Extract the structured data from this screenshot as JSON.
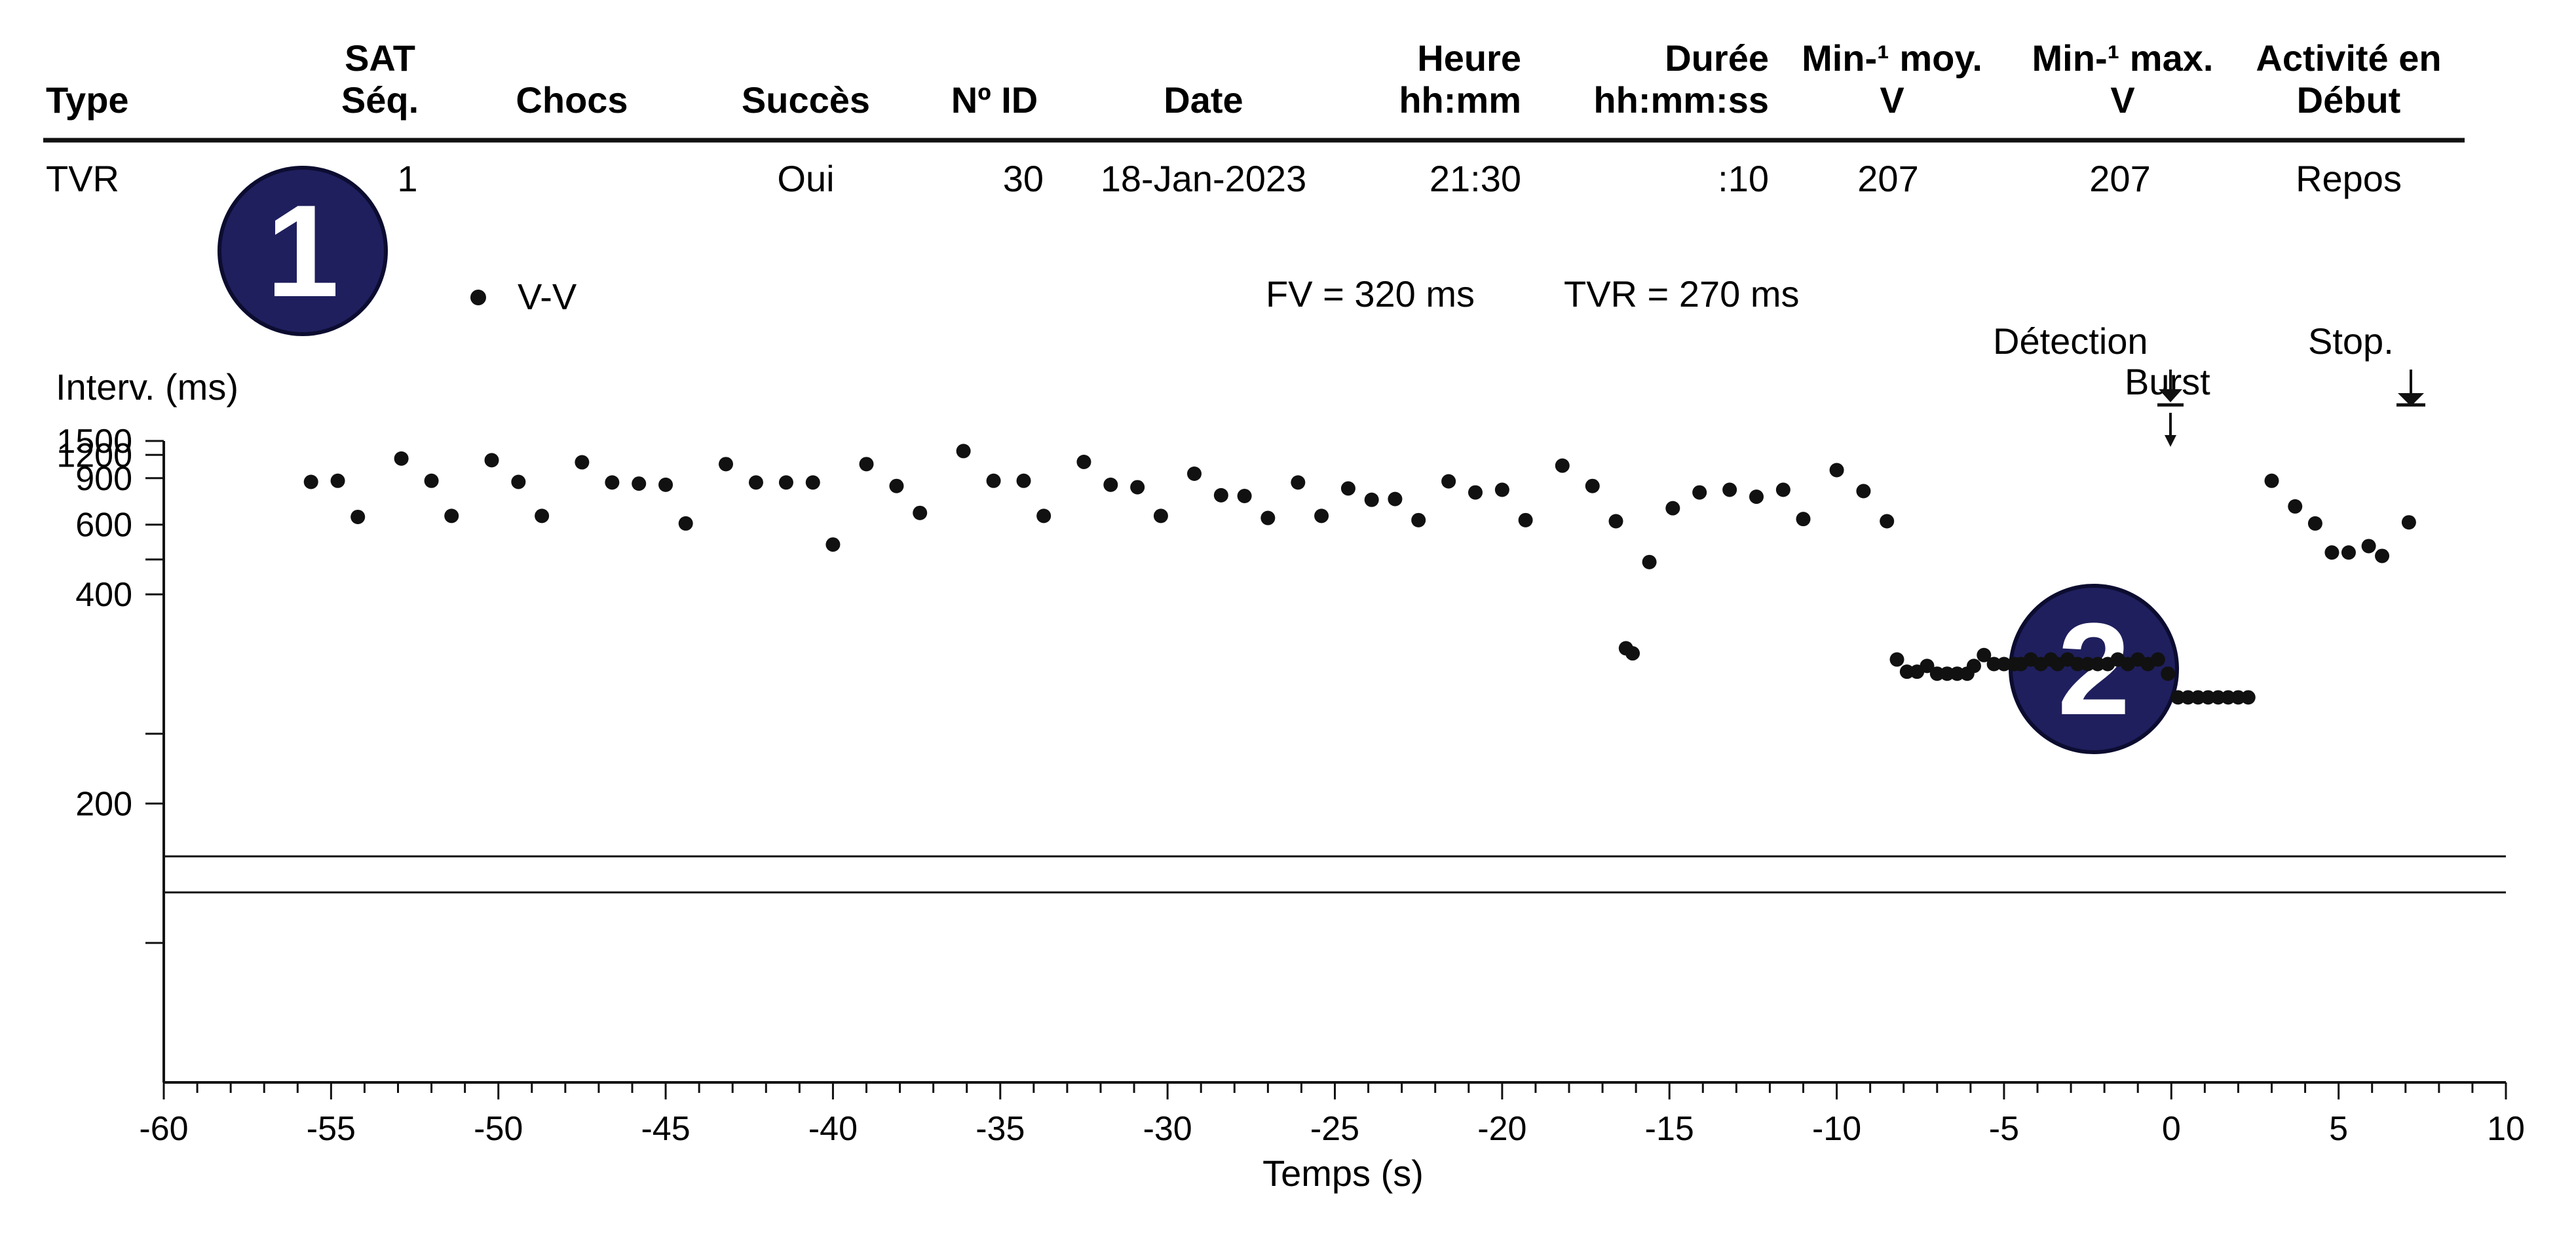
{
  "table": {
    "headers": [
      {
        "line1": "",
        "line2": "Type"
      },
      {
        "line1": "SAT",
        "line2": "Séq."
      },
      {
        "line1": "",
        "line2": "Chocs"
      },
      {
        "line1": "",
        "line2": "Succès"
      },
      {
        "line1": "",
        "line2": "Nº ID"
      },
      {
        "line1": "",
        "line2": "Date"
      },
      {
        "line1": "Heure",
        "line2": "hh:mm"
      },
      {
        "line1": "Durée",
        "line2": "hh:mm:ss"
      },
      {
        "line1": "Min-¹ moy.",
        "line2": "V"
      },
      {
        "line1": "Min-¹ max.",
        "line2": "V"
      },
      {
        "line1": "Activité en",
        "line2": "Début"
      }
    ],
    "row": [
      "TVR",
      "1",
      "",
      "Oui",
      "30",
      "18-Jan-2023",
      "21:30",
      ":10",
      "207",
      "207",
      "Repos"
    ]
  },
  "badges": {
    "badge1": "1",
    "badge2": "2"
  },
  "legend": {
    "series": "V-V"
  },
  "info": {
    "fv": "FV = 320 ms",
    "tvr": "TVR = 270 ms"
  },
  "markers": {
    "detection": "Détection",
    "burst": "Burst",
    "stop": "Stop."
  },
  "colors": {
    "ink": "#111111",
    "badge": "#1f1f5e",
    "badge_text": "#ffffff"
  },
  "chart_data": {
    "type": "scatter",
    "title": "",
    "xlabel": "Temps (s)",
    "ylabel": "Interv. (ms)",
    "xlim": [
      -60,
      10
    ],
    "x_ticks": [
      -60,
      -55,
      -50,
      -45,
      -40,
      -35,
      -30,
      -25,
      -20,
      -15,
      -10,
      -5,
      0,
      5,
      10
    ],
    "y_ticks": [
      "1500",
      "1200",
      "900",
      "600",
      "",
      "400",
      "",
      "200",
      ""
    ],
    "y_scale": "reciprocal (rate-scaled interval axis)",
    "thresholds_ms": [
      320,
      270
    ],
    "series": [
      {
        "name": "V-V",
        "points": [
          [
            -55.6,
            865
          ],
          [
            -54.8,
            875
          ],
          [
            -54.2,
            635
          ],
          [
            -52.9,
            1140
          ],
          [
            -52.0,
            875
          ],
          [
            -51.4,
            640
          ],
          [
            -50.2,
            1115
          ],
          [
            -49.4,
            865
          ],
          [
            -48.7,
            640
          ],
          [
            -47.5,
            1085
          ],
          [
            -46.6,
            860
          ],
          [
            -45.8,
            850
          ],
          [
            -45.0,
            840
          ],
          [
            -44.4,
            605
          ],
          [
            -43.2,
            1060
          ],
          [
            -42.3,
            860
          ],
          [
            -41.4,
            860
          ],
          [
            -40.6,
            860
          ],
          [
            -40.0,
            525
          ],
          [
            -39.0,
            1060
          ],
          [
            -38.1,
            830
          ],
          [
            -37.4,
            655
          ],
          [
            -36.1,
            1270
          ],
          [
            -35.2,
            875
          ],
          [
            -34.3,
            875
          ],
          [
            -33.7,
            640
          ],
          [
            -32.5,
            1090
          ],
          [
            -31.7,
            840
          ],
          [
            -30.9,
            820
          ],
          [
            -30.2,
            640
          ],
          [
            -29.2,
            945
          ],
          [
            -28.4,
            760
          ],
          [
            -27.7,
            755
          ],
          [
            -27.0,
            630
          ],
          [
            -26.1,
            860
          ],
          [
            -25.4,
            640
          ],
          [
            -24.6,
            810
          ],
          [
            -23.9,
            730
          ],
          [
            -23.2,
            735
          ],
          [
            -22.5,
            620
          ],
          [
            -21.6,
            870
          ],
          [
            -20.8,
            780
          ],
          [
            -20.0,
            800
          ],
          [
            -19.3,
            620
          ],
          [
            -18.2,
            1040
          ],
          [
            -17.3,
            830
          ],
          [
            -16.6,
            615
          ],
          [
            -16.3,
            318
          ],
          [
            -16.1,
            312
          ],
          [
            -15.6,
            473
          ],
          [
            -14.9,
            680
          ],
          [
            -14.1,
            780
          ],
          [
            -13.2,
            800
          ],
          [
            -12.4,
            750
          ],
          [
            -11.6,
            800
          ],
          [
            -11.0,
            625
          ],
          [
            -10.0,
            985
          ],
          [
            -9.2,
            790
          ],
          [
            -8.5,
            615
          ],
          [
            -8.2,
            305
          ],
          [
            -7.9,
            292
          ],
          [
            -7.6,
            292
          ],
          [
            -7.3,
            298
          ],
          [
            -7.0,
            290
          ],
          [
            -6.7,
            290
          ],
          [
            -6.4,
            290
          ],
          [
            -6.1,
            290
          ],
          [
            -5.9,
            298
          ],
          [
            -5.6,
            310
          ],
          [
            -5.3,
            300
          ],
          [
            -5.0,
            300
          ],
          [
            -4.7,
            300
          ],
          [
            -4.5,
            300
          ],
          [
            -4.2,
            305
          ],
          [
            -3.9,
            300
          ],
          [
            -3.6,
            305
          ],
          [
            -3.4,
            300
          ],
          [
            -3.1,
            305
          ],
          [
            -2.8,
            300
          ],
          [
            -2.5,
            300
          ],
          [
            -2.2,
            300
          ],
          [
            -1.9,
            300
          ],
          [
            -1.6,
            305
          ],
          [
            -1.3,
            300
          ],
          [
            -1.0,
            305
          ],
          [
            -0.7,
            300
          ],
          [
            -0.4,
            305
          ],
          [
            -0.1,
            290
          ],
          [
            0.2,
            268
          ],
          [
            0.5,
            268
          ],
          [
            0.8,
            268
          ],
          [
            1.1,
            268
          ],
          [
            1.4,
            268
          ],
          [
            1.7,
            268
          ],
          [
            2.0,
            268
          ],
          [
            2.3,
            268
          ],
          [
            3.0,
            875
          ],
          [
            3.7,
            690
          ],
          [
            4.3,
            605
          ],
          [
            4.8,
            500
          ],
          [
            5.3,
            500
          ],
          [
            5.9,
            520
          ],
          [
            6.3,
            490
          ],
          [
            7.1,
            610
          ]
        ]
      }
    ],
    "annotations": [
      {
        "text": "Détection",
        "x": 0
      },
      {
        "text": "Burst",
        "x": 0
      },
      {
        "text": "Stop.",
        "x": 7.1
      }
    ]
  }
}
